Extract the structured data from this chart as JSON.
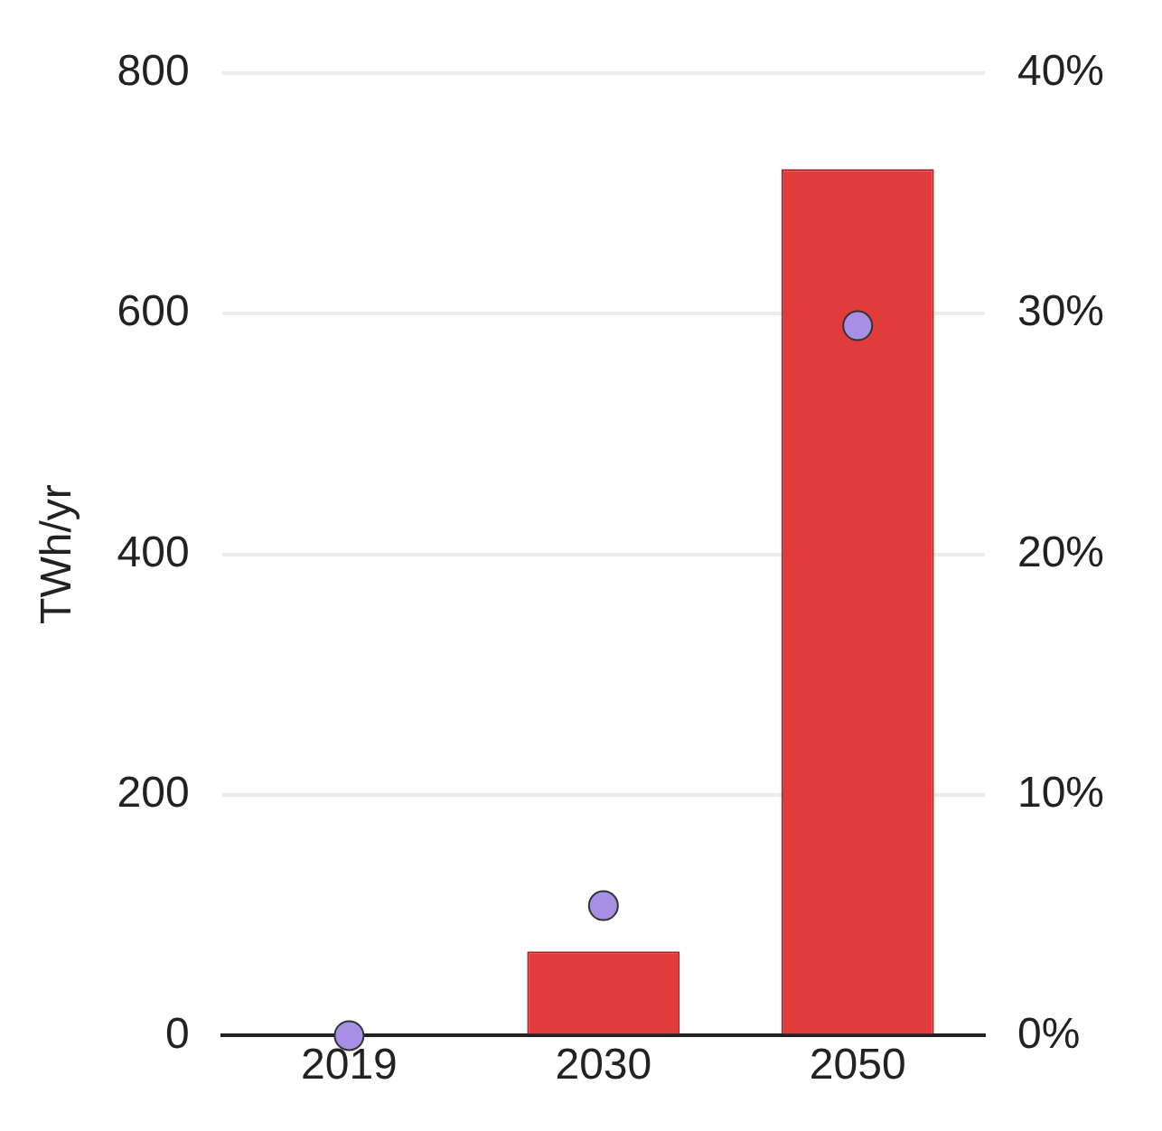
{
  "chart_data": {
    "type": "bar",
    "ylabel": "TWh/yr",
    "categories": [
      "2019",
      "2030",
      "2050"
    ],
    "series": [
      {
        "color": "#e23b3b",
        "values": [
          0,
          70,
          720
        ]
      },
      {
        "type": "scatter",
        "axis": "y2",
        "color": "#a98fe3",
        "values": [
          0,
          5.4,
          29.5
        ]
      }
    ],
    "ylim": [
      0,
      800
    ],
    "yticks": [
      0,
      200,
      400,
      600,
      800
    ],
    "y2lim": [
      0,
      40
    ],
    "y2ticks": [
      {
        "value": 0,
        "label": "0%"
      },
      {
        "value": 10,
        "label": "10%"
      },
      {
        "value": 20,
        "label": "20%"
      },
      {
        "value": 30,
        "label": "30%"
      },
      {
        "value": 40,
        "label": "40%"
      }
    ],
    "grid": "y",
    "legend": false,
    "marker": "circle"
  }
}
